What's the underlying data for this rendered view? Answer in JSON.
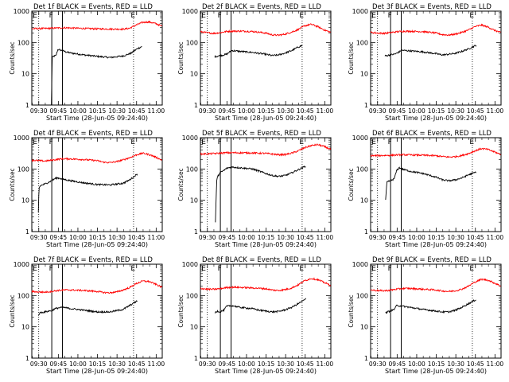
{
  "figure": {
    "start_time_label": "Start Time (28-Jun-05 09:24:40)",
    "ylabel": "Counts/sec",
    "x_ticks": [
      "09:30",
      "09:45",
      "10:00",
      "10:15",
      "10:30",
      "10:45",
      "11:00"
    ],
    "y_ticks": [
      "1",
      "10",
      "100",
      "1000"
    ],
    "marker_labels": [
      "E",
      "F",
      "E"
    ]
  },
  "colors": {
    "events": "#000000",
    "lld": "#ff0000",
    "axis": "#000000",
    "background": "#ffffff"
  },
  "chart_data": [
    {
      "type": "line",
      "title": "Det 1f BLACK = Events, RED = LLD",
      "xlabel": "Start Time (28-Jun-05 09:24:40)",
      "ylabel": "Counts/sec",
      "xlim_min": [
        0,
        100
      ],
      "ylim": [
        1,
        1000
      ],
      "yscale": "log",
      "vlines_solid_min": [
        15.3,
        23.5
      ],
      "vlines_dotted_min": [
        5.3,
        78.0
      ],
      "series": [
        {
          "name": "Events",
          "color": "#000000",
          "start": 15.0,
          "end": 84.5,
          "x": [
            15.0,
            15.6,
            16.5,
            18.5,
            20.0,
            24.0,
            26.0,
            30.0,
            40.0,
            50.0,
            60.0,
            70.0,
            76.0,
            80.0,
            84.5
          ],
          "y": [
            1.0,
            33,
            36,
            38,
            60,
            54,
            50,
            46,
            40,
            36,
            33,
            37,
            45,
            60,
            75
          ]
        },
        {
          "name": "LLD",
          "color": "#ff0000",
          "start": 0,
          "end": 100,
          "x": [
            0,
            10,
            20,
            25,
            30,
            40,
            50,
            60,
            70,
            75,
            80,
            85,
            90,
            95,
            100
          ],
          "y": [
            275,
            280,
            290,
            295,
            290,
            280,
            272,
            268,
            265,
            285,
            360,
            440,
            450,
            400,
            330
          ]
        }
      ]
    },
    {
      "type": "line",
      "title": "Det 2f BLACK = Events, RED = LLD",
      "xlabel": "Start Time (28-Jun-05 09:24:40)",
      "ylabel": "Counts/sec",
      "xlim_min": [
        0,
        100
      ],
      "ylim": [
        1,
        1000
      ],
      "yscale": "log",
      "vlines_solid_min": [
        15.3,
        23.5
      ],
      "vlines_dotted_min": [
        5.3,
        78.0
      ],
      "series": [
        {
          "name": "Events",
          "color": "#000000",
          "start": 11.0,
          "end": 78.5,
          "x": [
            11.0,
            15.0,
            18.0,
            20.0,
            24.0,
            30.0,
            40.0,
            50.0,
            55.0,
            60.0,
            65.0,
            70.0,
            74.0,
            78.5
          ],
          "y": [
            35,
            38,
            40,
            42,
            55,
            52,
            48,
            42,
            38,
            40,
            46,
            55,
            68,
            82
          ]
        },
        {
          "name": "LLD",
          "color": "#ff0000",
          "start": 0,
          "end": 100,
          "x": [
            0,
            5,
            10,
            15,
            20,
            25,
            30,
            40,
            50,
            55,
            60,
            65,
            70,
            75,
            80,
            85,
            90,
            95,
            100
          ],
          "y": [
            220,
            205,
            195,
            205,
            225,
            230,
            230,
            225,
            200,
            175,
            170,
            185,
            215,
            260,
            340,
            380,
            320,
            250,
            210
          ]
        }
      ]
    },
    {
      "type": "line",
      "title": "Det 3f BLACK = Events, RED = LLD",
      "xlabel": "Start Time (28-Jun-05 09:24:40)",
      "ylabel": "Counts/sec",
      "xlim_min": [
        0,
        100
      ],
      "ylim": [
        1,
        1000
      ],
      "yscale": "log",
      "vlines_solid_min": [
        15.3,
        23.5
      ],
      "vlines_dotted_min": [
        5.3,
        78.0
      ],
      "series": [
        {
          "name": "Events",
          "color": "#000000",
          "start": 11.0,
          "end": 81.0,
          "x": [
            11.0,
            15.0,
            18.0,
            20.0,
            24.0,
            30.0,
            40.0,
            50.0,
            55.0,
            60.0,
            65.0,
            70.0,
            75.0,
            81.0
          ],
          "y": [
            37,
            40,
            42,
            45,
            56,
            54,
            50,
            44,
            40,
            42,
            45,
            52,
            62,
            82
          ]
        },
        {
          "name": "LLD",
          "color": "#ff0000",
          "start": 0,
          "end": 100,
          "x": [
            0,
            5,
            10,
            15,
            20,
            25,
            30,
            40,
            50,
            55,
            60,
            65,
            70,
            75,
            80,
            85,
            90,
            95,
            100
          ],
          "y": [
            210,
            200,
            195,
            205,
            220,
            228,
            228,
            222,
            200,
            178,
            172,
            185,
            210,
            250,
            320,
            360,
            310,
            245,
            205
          ]
        }
      ]
    },
    {
      "type": "line",
      "title": "Det 4f BLACK = Events, RED = LLD",
      "xlabel": "Start Time (28-Jun-05 09:24:40)",
      "ylabel": "Counts/sec",
      "xlim_min": [
        0,
        100
      ],
      "ylim": [
        1,
        1000
      ],
      "yscale": "log",
      "vlines_solid_min": [
        15.3,
        23.5
      ],
      "vlines_dotted_min": [
        5.3,
        78.0
      ],
      "series": [
        {
          "name": "Events",
          "color": "#000000",
          "start": 5.0,
          "end": 81.0,
          "x": [
            5.0,
            5.5,
            7.0,
            10.0,
            13.0,
            15.0,
            18.0,
            20.0,
            24.0,
            30.0,
            40.0,
            50.0,
            60.0,
            70.0,
            75.0,
            81.0
          ],
          "y": [
            4.0,
            25,
            30,
            33,
            38,
            42,
            50,
            52,
            47,
            42,
            36,
            32,
            31,
            35,
            45,
            70
          ]
        },
        {
          "name": "LLD",
          "color": "#ff0000",
          "start": 0,
          "end": 100,
          "x": [
            0,
            5,
            10,
            15,
            20,
            25,
            30,
            40,
            50,
            55,
            60,
            65,
            70,
            75,
            80,
            85,
            90,
            95,
            100
          ],
          "y": [
            190,
            185,
            180,
            190,
            205,
            212,
            210,
            200,
            185,
            165,
            160,
            172,
            195,
            230,
            280,
            320,
            290,
            240,
            190
          ]
        }
      ]
    },
    {
      "type": "line",
      "title": "Det 5f BLACK = Events, RED = LLD",
      "xlabel": "Start Time (28-Jun-05 09:24:40)",
      "ylabel": "Counts/sec",
      "xlim_min": [
        0,
        100
      ],
      "ylim": [
        1,
        1000
      ],
      "yscale": "log",
      "vlines_solid_min": [
        15.3,
        23.5
      ],
      "vlines_dotted_min": [
        5.3,
        78.0
      ],
      "series": [
        {
          "name": "Events",
          "color": "#000000",
          "start": 11.5,
          "end": 81.0,
          "x": [
            11.5,
            12.5,
            13.5,
            15.0,
            18.0,
            20.0,
            24.0,
            30.0,
            40.0,
            45.0,
            50.0,
            55.0,
            60.0,
            65.0,
            70.0,
            75.0,
            81.0
          ],
          "y": [
            2.0,
            45,
            60,
            75,
            90,
            105,
            115,
            110,
            100,
            85,
            72,
            62,
            58,
            62,
            75,
            95,
            125
          ]
        },
        {
          "name": "LLD",
          "color": "#ff0000",
          "start": 0,
          "end": 100,
          "x": [
            0,
            10,
            20,
            30,
            40,
            50,
            55,
            60,
            65,
            70,
            75,
            80,
            85,
            90,
            95,
            100
          ],
          "y": [
            300,
            310,
            330,
            330,
            325,
            315,
            300,
            285,
            290,
            320,
            380,
            480,
            560,
            600,
            520,
            420
          ]
        }
      ]
    },
    {
      "type": "line",
      "title": "Det 6f BLACK = Events, RED = LLD",
      "xlabel": "Start Time (28-Jun-05 09:24:40)",
      "ylabel": "Counts/sec",
      "xlim_min": [
        0,
        100
      ],
      "ylim": [
        1,
        1000
      ],
      "yscale": "log",
      "vlines_solid_min": [
        15.3,
        23.5
      ],
      "vlines_dotted_min": [
        5.3,
        78.0
      ],
      "series": [
        {
          "name": "Events",
          "color": "#000000",
          "start": 11.5,
          "end": 81.0,
          "x": [
            11.5,
            12.5,
            15.0,
            18.0,
            20.0,
            22.0,
            24.0,
            30.0,
            40.0,
            50.0,
            55.0,
            60.0,
            65.0,
            70.0,
            75.0,
            81.0
          ],
          "y": [
            10,
            38,
            42,
            48,
            90,
            110,
            100,
            85,
            72,
            55,
            45,
            42,
            45,
            52,
            65,
            80
          ]
        },
        {
          "name": "LLD",
          "color": "#ff0000",
          "start": 0,
          "end": 100,
          "x": [
            0,
            10,
            20,
            25,
            30,
            40,
            50,
            55,
            60,
            65,
            70,
            75,
            80,
            85,
            90,
            95,
            100
          ],
          "y": [
            265,
            270,
            280,
            285,
            282,
            275,
            265,
            250,
            240,
            248,
            270,
            310,
            380,
            450,
            420,
            350,
            290
          ]
        }
      ]
    },
    {
      "type": "line",
      "title": "Det 7f BLACK = Events, RED = LLD",
      "xlabel": "Start Time (28-Jun-05 09:24:40)",
      "ylabel": "Counts/sec",
      "xlim_min": [
        0,
        100
      ],
      "ylim": [
        1,
        1000
      ],
      "yscale": "log",
      "vlines_solid_min": [
        15.3,
        23.5
      ],
      "vlines_dotted_min": [
        5.3,
        78.0
      ],
      "series": [
        {
          "name": "Events",
          "color": "#000000",
          "start": 5.0,
          "end": 81.0,
          "x": [
            5.0,
            6.0,
            10.0,
            15.0,
            18.0,
            20.0,
            24.0,
            30.0,
            40.0,
            50.0,
            60.0,
            70.0,
            75.0,
            81.0
          ],
          "y": [
            22,
            28,
            30,
            33,
            38,
            40,
            42,
            38,
            34,
            30,
            30,
            36,
            48,
            68
          ]
        },
        {
          "name": "LLD",
          "color": "#ff0000",
          "start": 0,
          "end": 100,
          "x": [
            0,
            5,
            10,
            15,
            20,
            25,
            30,
            40,
            50,
            55,
            60,
            65,
            70,
            75,
            80,
            85,
            90,
            95,
            100
          ],
          "y": [
            135,
            130,
            128,
            135,
            145,
            150,
            150,
            145,
            135,
            125,
            122,
            130,
            150,
            180,
            240,
            290,
            280,
            230,
            180
          ]
        }
      ]
    },
    {
      "type": "line",
      "title": "Det 8f BLACK = Events, RED = LLD",
      "xlabel": "Start Time (28-Jun-05 09:24:40)",
      "ylabel": "Counts/sec",
      "xlim_min": [
        0,
        100
      ],
      "ylim": [
        1,
        1000
      ],
      "yscale": "log",
      "vlines_solid_min": [
        15.3,
        23.5
      ],
      "vlines_dotted_min": [
        5.3,
        78.0
      ],
      "series": [
        {
          "name": "Events",
          "color": "#000000",
          "start": 11.0,
          "end": 81.0,
          "x": [
            11.0,
            13.0,
            15.0,
            18.0,
            20.0,
            24.0,
            30.0,
            40.0,
            45.0,
            50.0,
            55.0,
            60.0,
            65.0,
            70.0,
            75.0,
            81.0
          ],
          "y": [
            28,
            32,
            30,
            34,
            45,
            48,
            42,
            38,
            34,
            32,
            30,
            31,
            35,
            42,
            55,
            78
          ]
        },
        {
          "name": "LLD",
          "color": "#ff0000",
          "start": 0,
          "end": 100,
          "x": [
            0,
            5,
            10,
            15,
            20,
            25,
            30,
            40,
            50,
            55,
            60,
            65,
            70,
            75,
            80,
            85,
            90,
            95,
            100
          ],
          "y": [
            170,
            160,
            158,
            165,
            180,
            185,
            182,
            175,
            165,
            150,
            145,
            155,
            175,
            220,
            300,
            350,
            320,
            260,
            210
          ]
        }
      ]
    },
    {
      "type": "line",
      "title": "Det 9f BLACK = Events, RED = LLD",
      "xlabel": "Start Time (28-Jun-05 09:24:40)",
      "ylabel": "Counts/sec",
      "xlim_min": [
        0,
        100
      ],
      "ylim": [
        1,
        1000
      ],
      "yscale": "log",
      "vlines_solid_min": [
        15.3,
        23.5
      ],
      "vlines_dotted_min": [
        5.3,
        78.0
      ],
      "series": [
        {
          "name": "Events",
          "color": "#000000",
          "start": 11.5,
          "end": 81.0,
          "x": [
            11.5,
            13.0,
            15.0,
            18.0,
            20.0,
            24.0,
            30.0,
            40.0,
            50.0,
            55.0,
            60.0,
            65.0,
            70.0,
            75.0,
            81.0
          ],
          "y": [
            28,
            30,
            32,
            36,
            48,
            46,
            42,
            36,
            32,
            30,
            30,
            34,
            42,
            55,
            75
          ]
        },
        {
          "name": "LLD",
          "color": "#ff0000",
          "start": 0,
          "end": 100,
          "x": [
            0,
            5,
            10,
            15,
            20,
            25,
            30,
            40,
            50,
            55,
            60,
            65,
            70,
            75,
            80,
            85,
            90,
            95,
            100
          ],
          "y": [
            150,
            145,
            142,
            148,
            160,
            168,
            168,
            160,
            150,
            140,
            135,
            142,
            160,
            200,
            270,
            330,
            310,
            250,
            200
          ]
        }
      ]
    }
  ]
}
